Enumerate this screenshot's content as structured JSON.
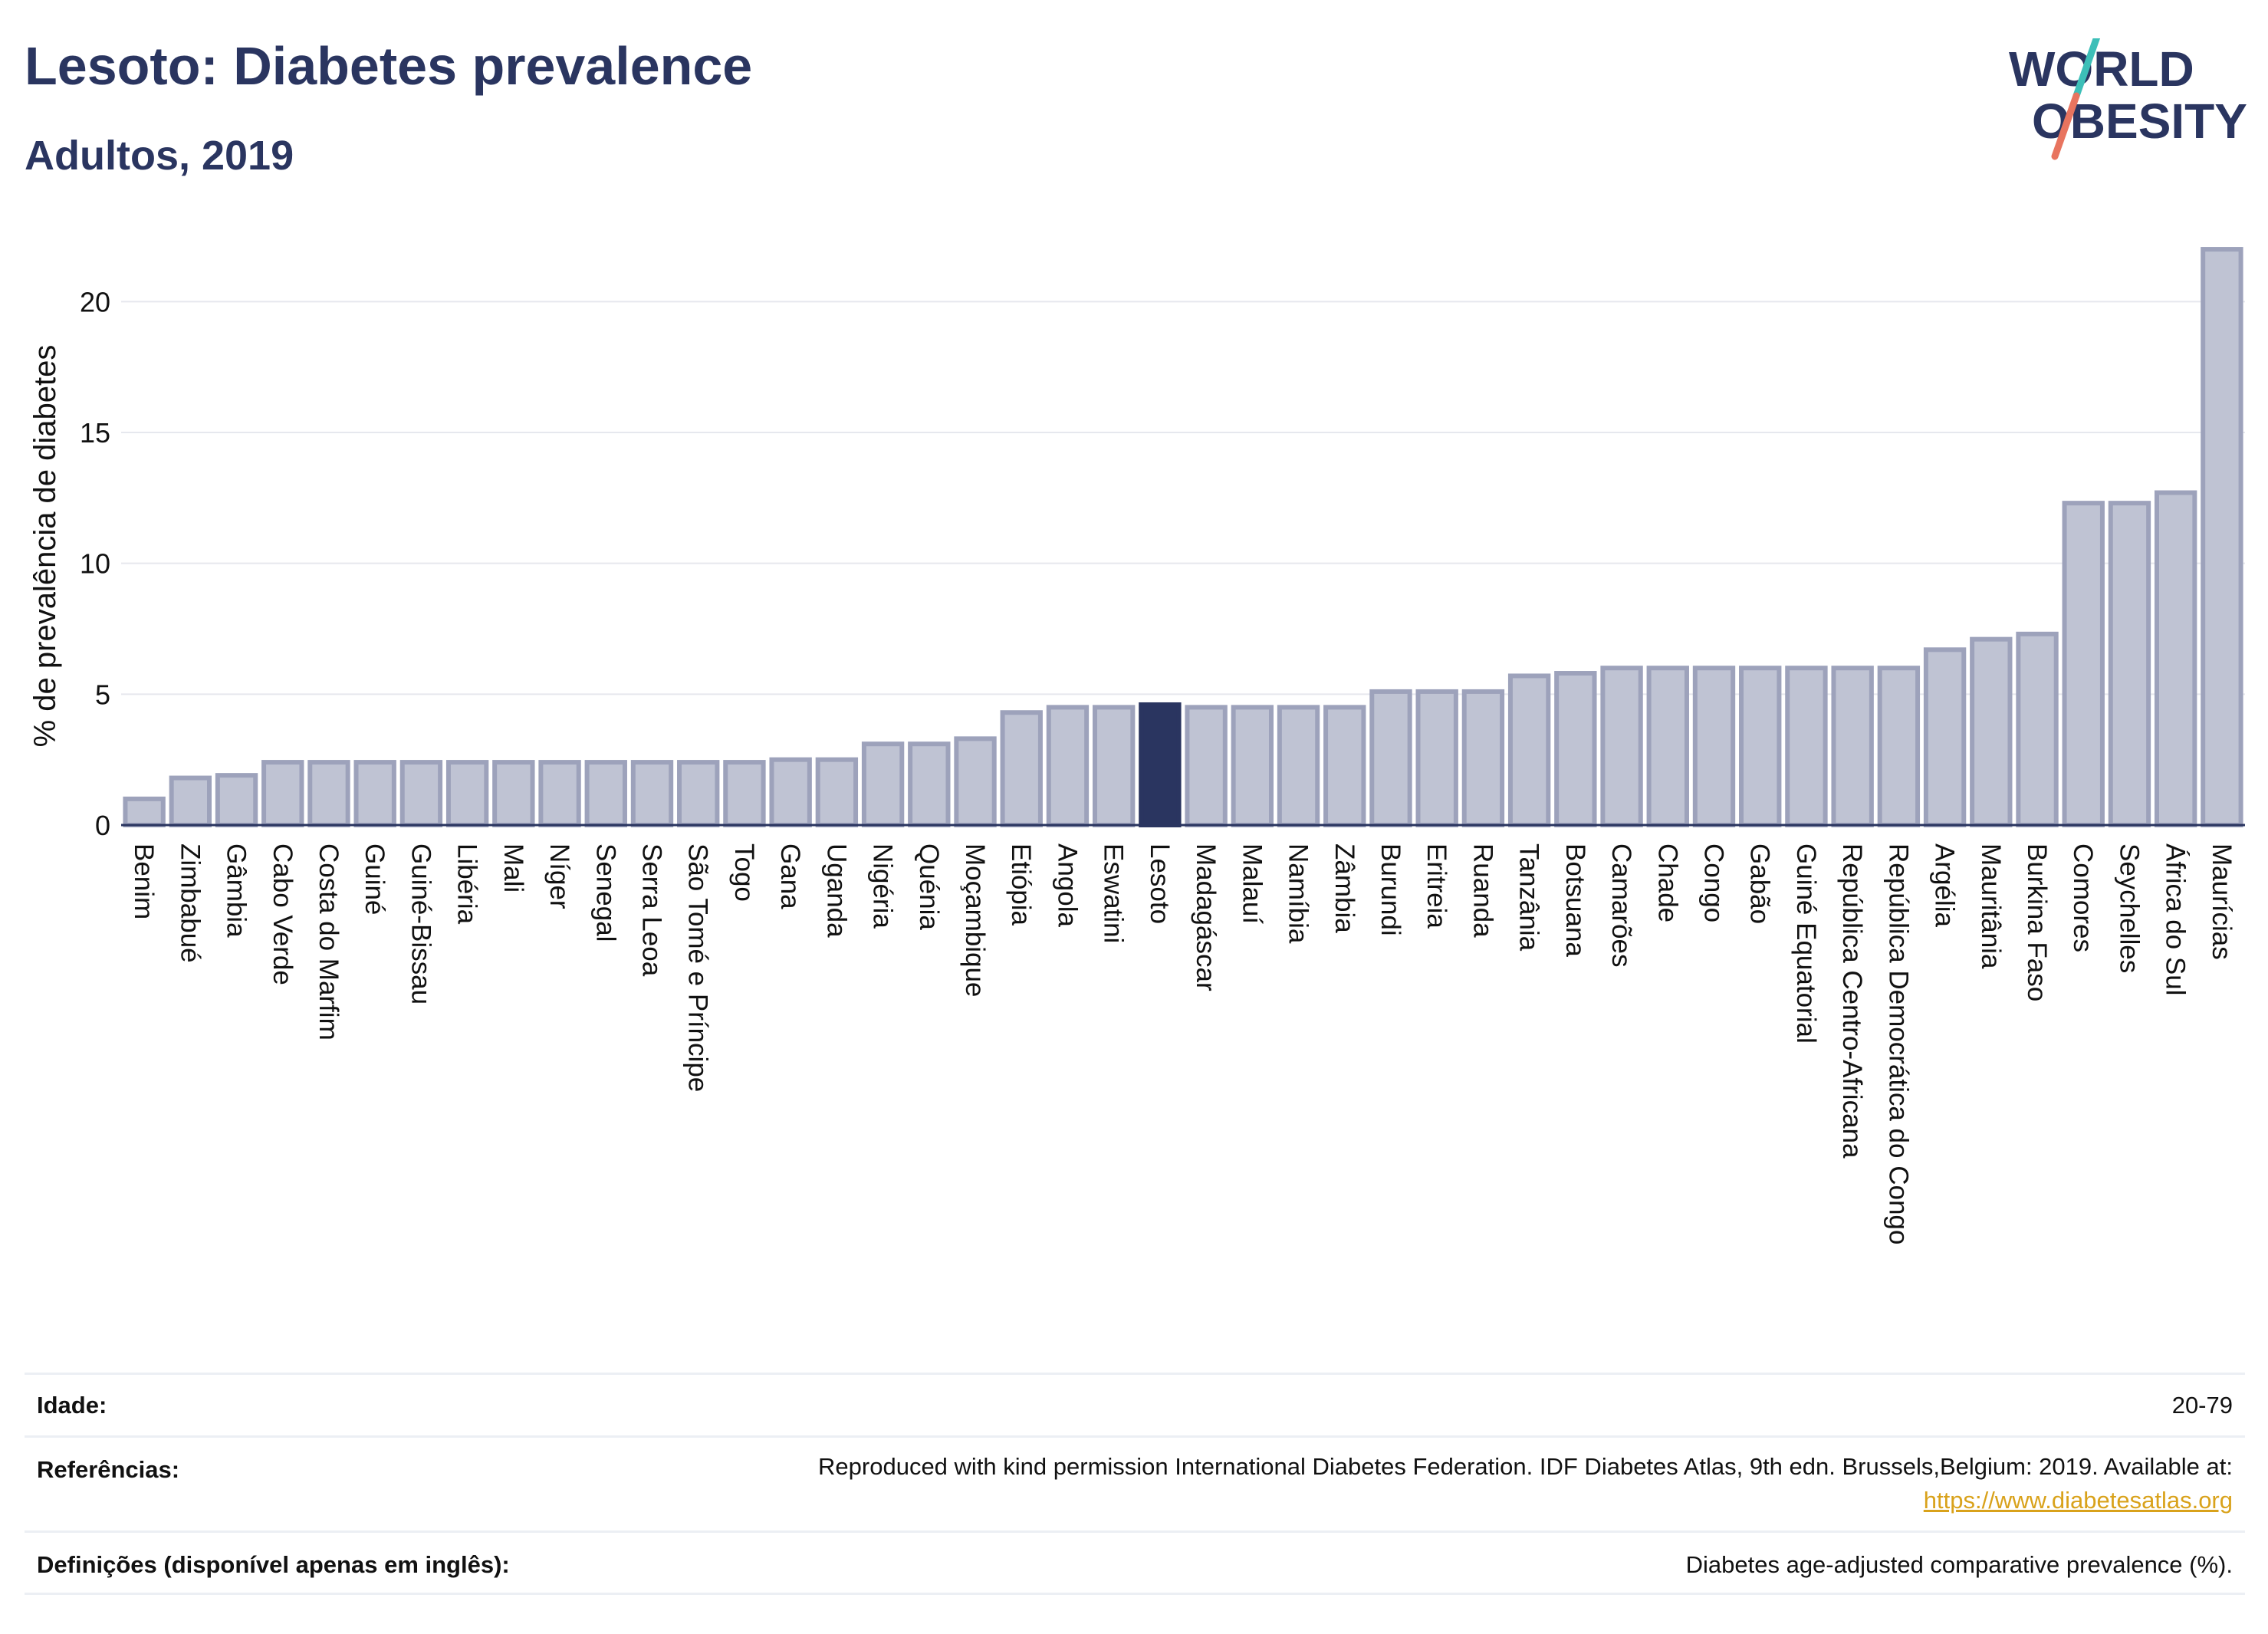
{
  "header": {
    "title": "Lesoto: Diabetes prevalence",
    "subtitle": "Adultos, 2019",
    "logo_line1": "WORLD",
    "logo_line2": "OBESITY"
  },
  "colors": {
    "bar": "#bfc3d3",
    "bar_stroke": "#9da2bb",
    "highlight": "#2a3560",
    "text": "#2a3560",
    "logo_teal": "#3dbfb8",
    "logo_coral": "#e8745f",
    "link": "#d9a21b"
  },
  "chart_data": {
    "type": "bar",
    "ylabel": "% de prevalência de diabetes",
    "ylim": [
      0,
      22.5
    ],
    "yticks": [
      0,
      5,
      10,
      15,
      20
    ],
    "grid": true,
    "highlight": "Lesoto",
    "categories": [
      "Benim",
      "Zimbabué",
      "Gâmbia",
      "Cabo Verde",
      "Costa do Marfim",
      "Guiné",
      "Guiné-Bissau",
      "Libéria",
      "Mali",
      "Níger",
      "Senegal",
      "Serra Leoa",
      "São Tomé e Príncipe",
      "Togo",
      "Gana",
      "Uganda",
      "Nigéria",
      "Quénia",
      "Moçambique",
      "Etiópia",
      "Angola",
      "Eswatini",
      "Lesoto",
      "Madagáscar",
      "Malauí",
      "Namíbia",
      "Zâmbia",
      "Burundi",
      "Eritreia",
      "Ruanda",
      "Tanzânia",
      "Botsuana",
      "Camarões",
      "Chade",
      "Congo",
      "Gabão",
      "Guiné Equatorial",
      "República Centro-Africana",
      "República Democrática do Congo",
      "Argélia",
      "Mauritânia",
      "Burkina Faso",
      "Comores",
      "Seychelles",
      "África do Sul",
      "Maurícias"
    ],
    "values": [
      1.0,
      1.8,
      1.9,
      2.4,
      2.4,
      2.4,
      2.4,
      2.4,
      2.4,
      2.4,
      2.4,
      2.4,
      2.4,
      2.4,
      2.5,
      2.5,
      3.1,
      3.1,
      3.3,
      4.3,
      4.5,
      4.5,
      4.6,
      4.5,
      4.5,
      4.5,
      4.5,
      5.1,
      5.1,
      5.1,
      5.7,
      5.8,
      6.0,
      6.0,
      6.0,
      6.0,
      6.0,
      6.0,
      6.0,
      6.7,
      7.1,
      7.3,
      12.3,
      12.3,
      12.7,
      22.0
    ]
  },
  "meta": {
    "rows": [
      {
        "label": "Idade:",
        "value": "20-79"
      },
      {
        "label": "Referências:",
        "value": "Reproduced with kind permission International Diabetes Federation. IDF Diabetes Atlas, 9th edn. Brussels,Belgium: 2019. Available at:",
        "link": "https://www.diabetesatlas.org"
      },
      {
        "label": "Definições (disponível apenas em inglês):",
        "value": "Diabetes age-adjusted comparative prevalence (%)."
      }
    ]
  }
}
